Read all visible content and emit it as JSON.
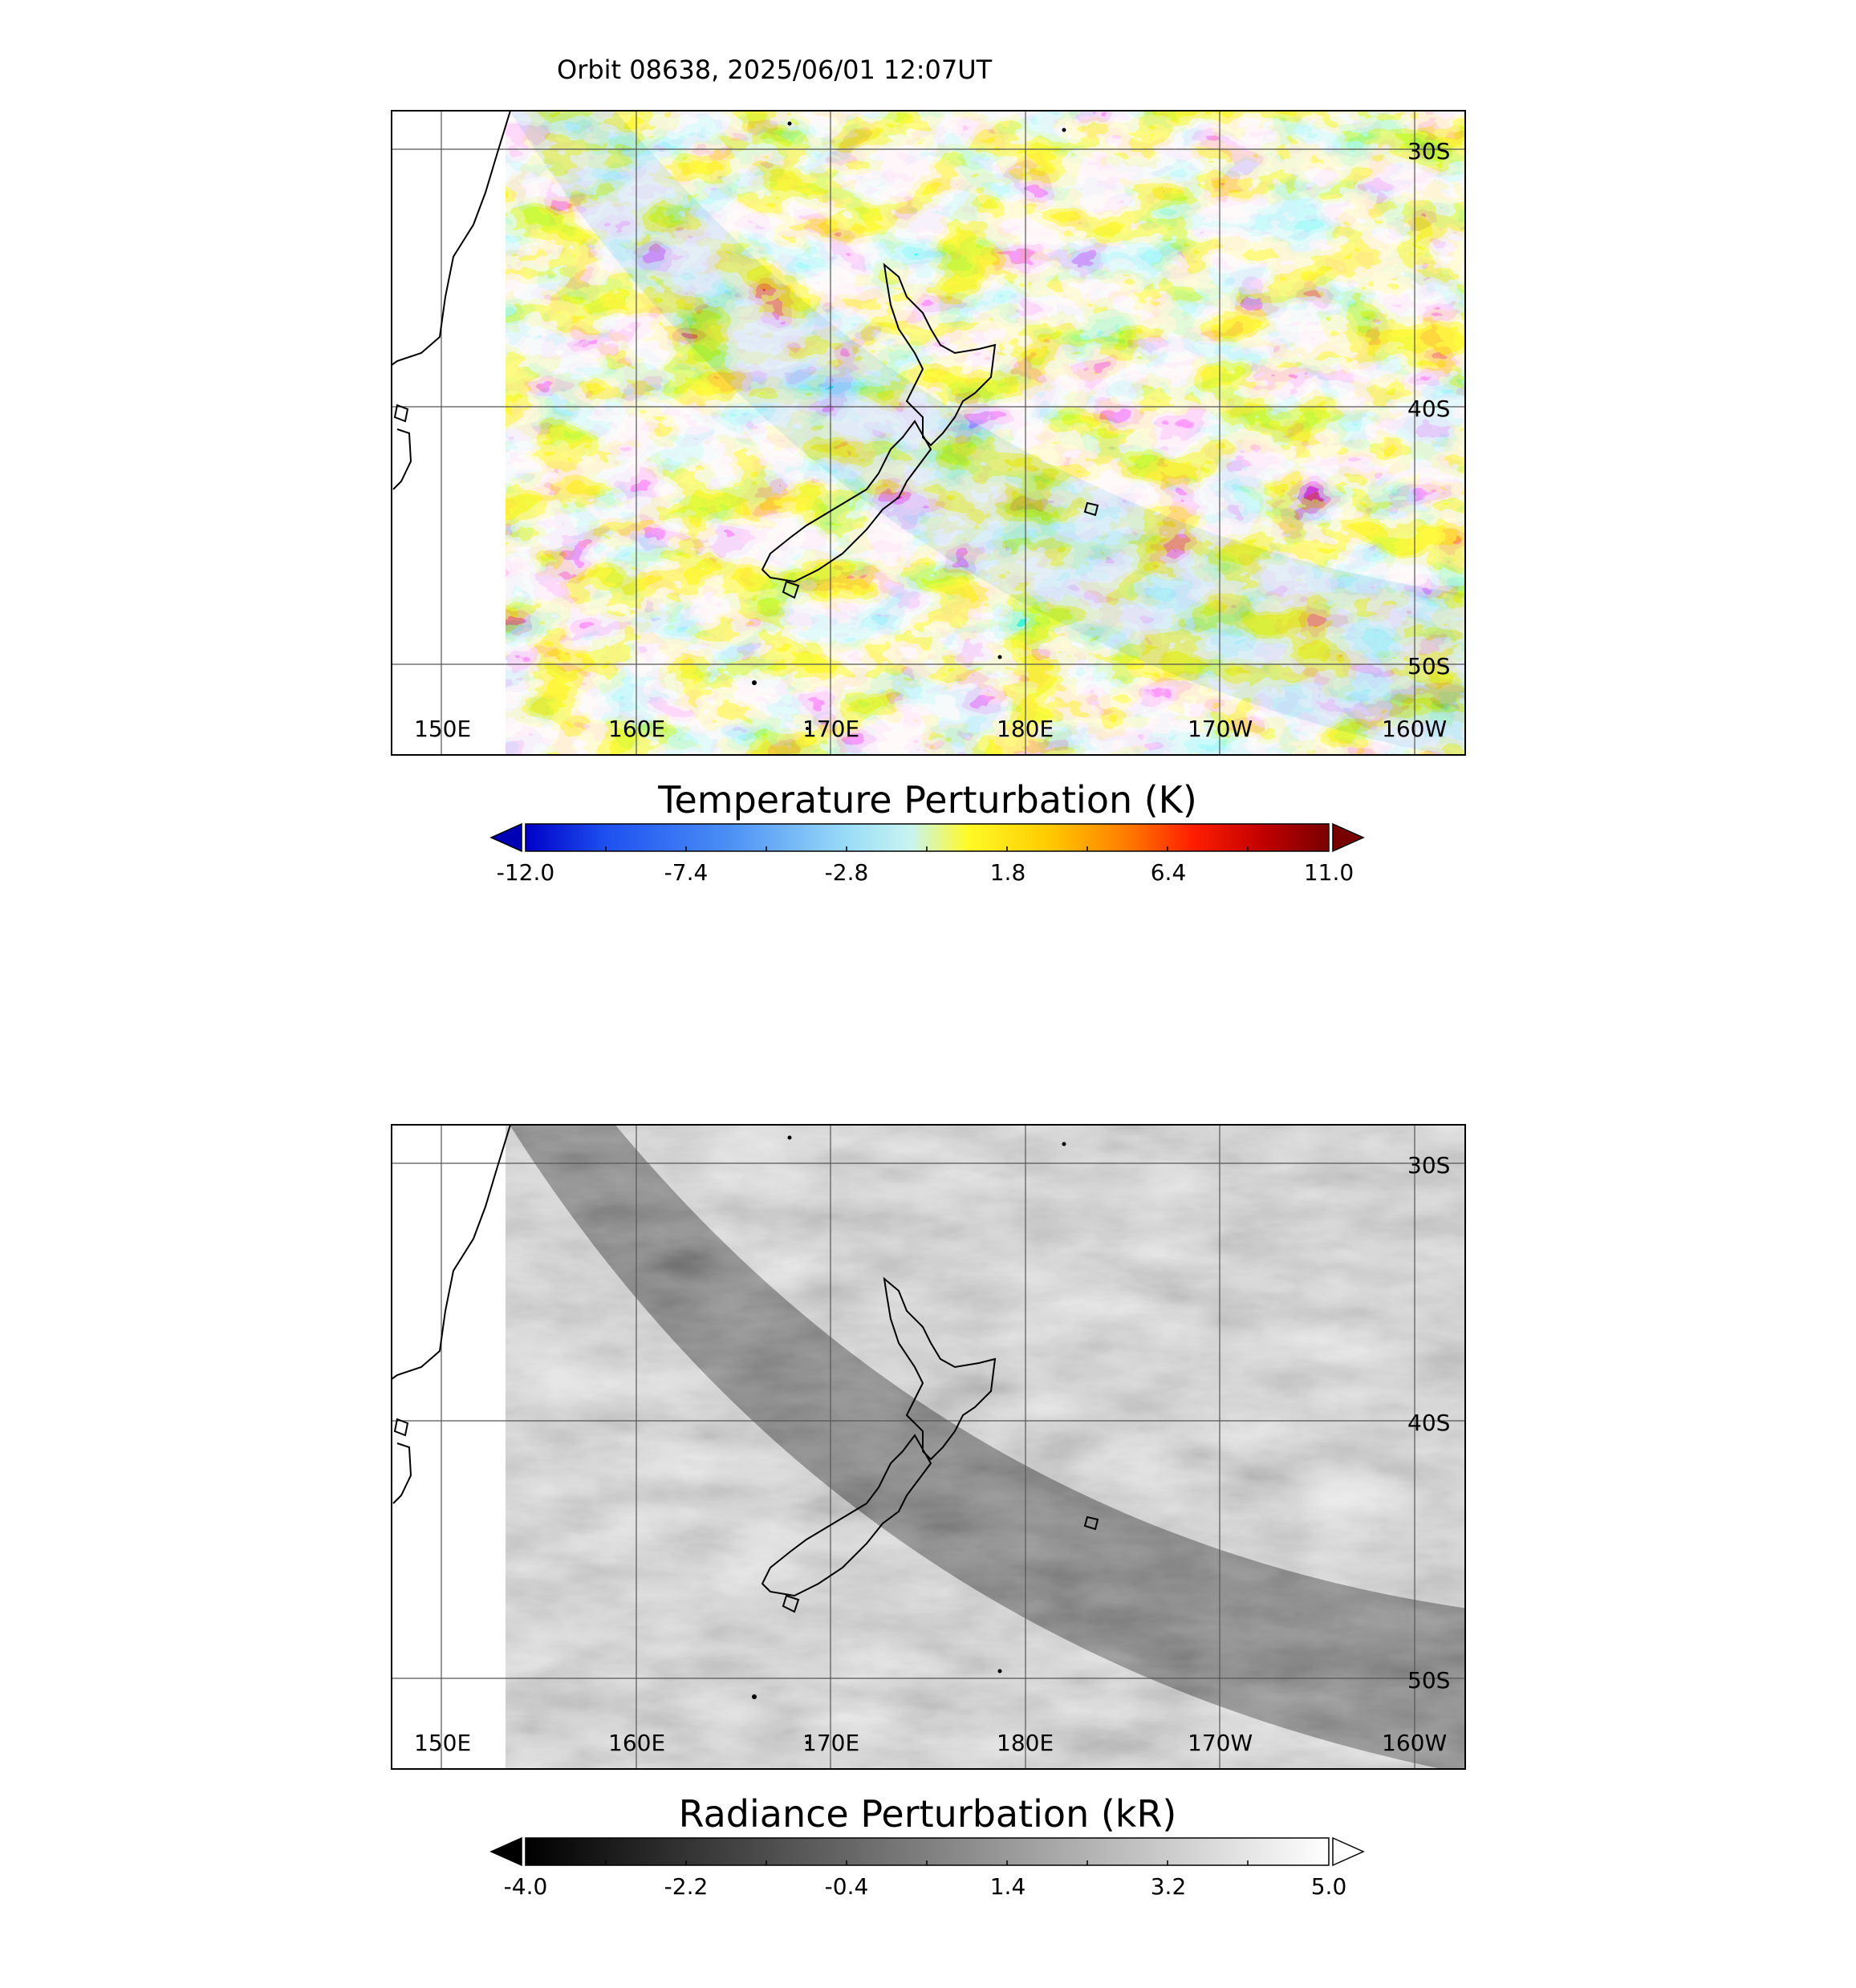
{
  "header": {
    "title": "Orbit 08638, 2025/06/01 12:07UT"
  },
  "map_axes": {
    "lon_labels": [
      "150E",
      "160E",
      "170E",
      "180E",
      "170W",
      "160W"
    ],
    "lat_labels": [
      "30S",
      "40S",
      "50S"
    ]
  },
  "panels": [
    {
      "id": "temperature",
      "colorbar": {
        "title": "Temperature Perturbation (K)",
        "ticks": [
          "-12.0",
          "-7.4",
          "-2.8",
          "1.8",
          "6.4",
          "11.0"
        ],
        "range": [
          -12.0,
          11.0
        ],
        "low_color": "#0000b4",
        "high_color": "#780000",
        "colors": [
          "#0000c8",
          "#1e50f0",
          "#4a8ef5",
          "#80c8f5",
          "#b4ecf8",
          "#e0fad0",
          "#fffa28",
          "#ffd200",
          "#ff9600",
          "#ff3c00",
          "#e60000",
          "#a00000",
          "#780000"
        ]
      }
    },
    {
      "id": "radiance",
      "colorbar": {
        "title": "Radiance Perturbation (kR)",
        "ticks": [
          "-4.0",
          "-2.2",
          "-0.4",
          "1.4",
          "3.2",
          "5.0"
        ],
        "range": [
          -4.0,
          5.0
        ],
        "low_color": "#000000",
        "high_color": "#ffffff",
        "colors": [
          "#000000",
          "#ffffff"
        ]
      }
    }
  ]
}
